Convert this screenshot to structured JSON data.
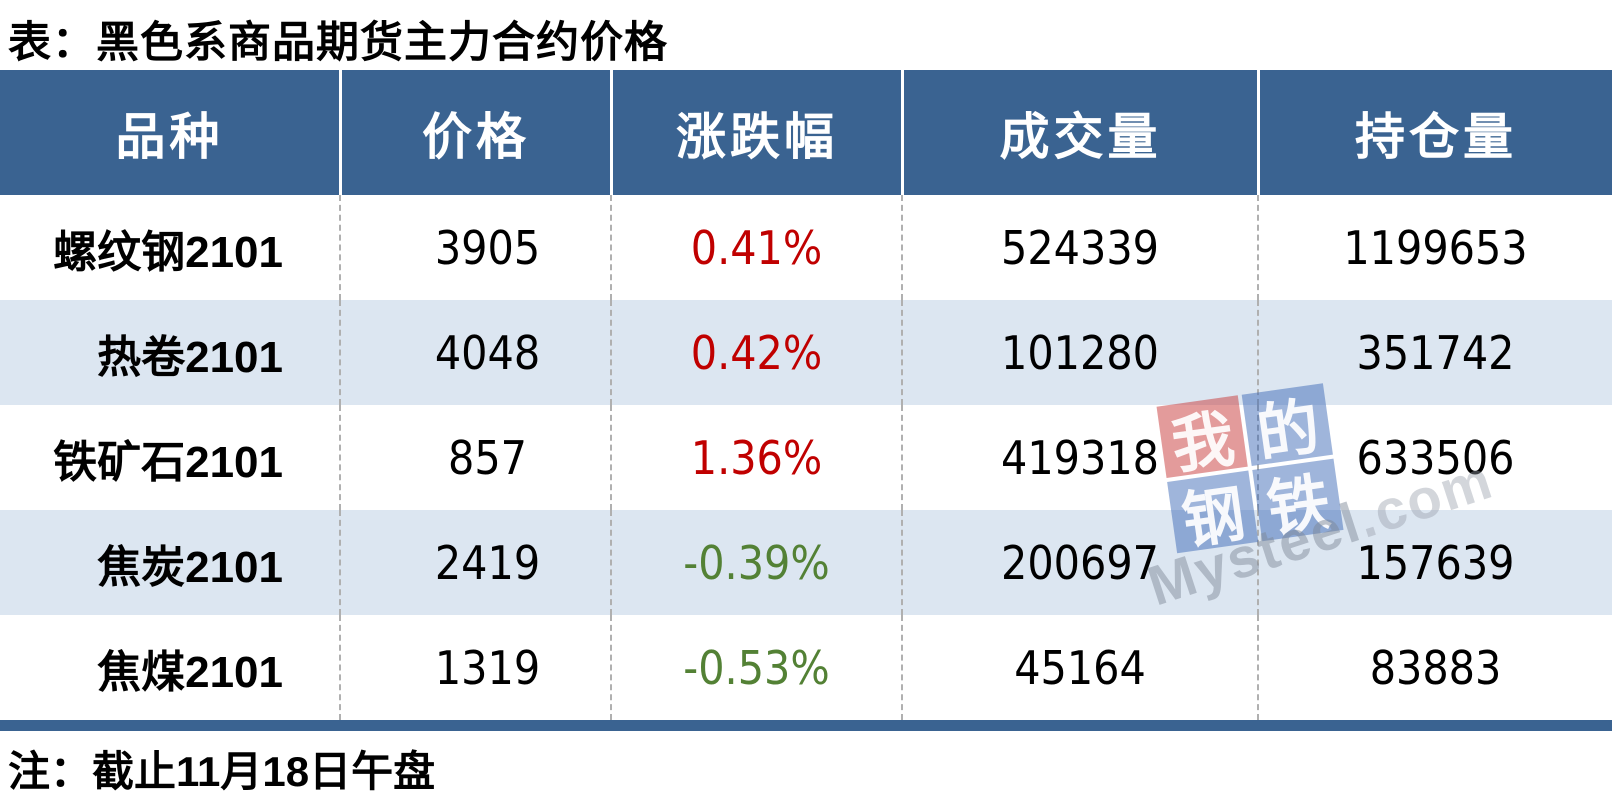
{
  "title": "表：黑色系商品期货主力合约价格",
  "note": "注：截止11月18日午盘",
  "table": {
    "columns": [
      "品种",
      "价格",
      "涨跌幅",
      "成交量",
      "持仓量"
    ],
    "rows": [
      {
        "name": "螺纹钢2101",
        "price": "3905",
        "change": "0.41%",
        "change_dir": "up",
        "volume": "524339",
        "open_interest": "1199653"
      },
      {
        "name": "热卷2101",
        "price": "4048",
        "change": "0.42%",
        "change_dir": "up",
        "volume": "101280",
        "open_interest": "351742"
      },
      {
        "name": "铁矿石2101",
        "price": "857",
        "change": "1.36%",
        "change_dir": "up",
        "volume": "419318",
        "open_interest": "633506"
      },
      {
        "name": "焦炭2101",
        "price": "2419",
        "change": "-0.39%",
        "change_dir": "down",
        "volume": "200697",
        "open_interest": "157639"
      },
      {
        "name": "焦煤2101",
        "price": "1319",
        "change": "-0.53%",
        "change_dir": "down",
        "volume": "45164",
        "open_interest": "83883"
      }
    ]
  },
  "watermark": {
    "tiles": [
      "我",
      "的",
      "钢",
      "铁"
    ],
    "brand": "Mysteel",
    "domain": ".com"
  },
  "colors": {
    "header_bg": "#3a6391",
    "row_alt_bg": "#dce6f1",
    "up": "#c00000",
    "down": "#538135"
  }
}
